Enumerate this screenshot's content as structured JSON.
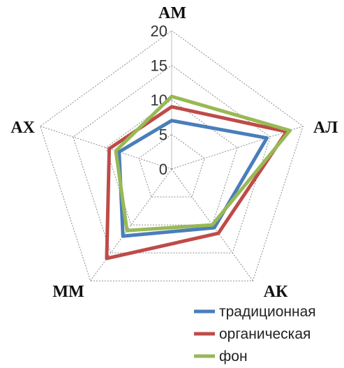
{
  "chart_data": {
    "type": "radar",
    "categories": [
      "АМ",
      "АЛ",
      "АК",
      "ММ",
      "АХ"
    ],
    "rlim": [
      0,
      20
    ],
    "ticks": [
      "0",
      "5",
      "10",
      "15",
      "20"
    ],
    "grid": true,
    "legend_position": "bottom-right",
    "series": [
      {
        "name": "традиционная",
        "values": [
          7.0,
          14.5,
          10.5,
          12.0,
          8.0
        ],
        "color": "#4a7ebb"
      },
      {
        "name": "органическая",
        "values": [
          9.0,
          17.5,
          11.5,
          16.0,
          9.5
        ],
        "color": "#be4b48"
      },
      {
        "name": "фон",
        "values": [
          10.5,
          18.0,
          10.0,
          11.0,
          8.5
        ],
        "color": "#98b954"
      }
    ]
  }
}
